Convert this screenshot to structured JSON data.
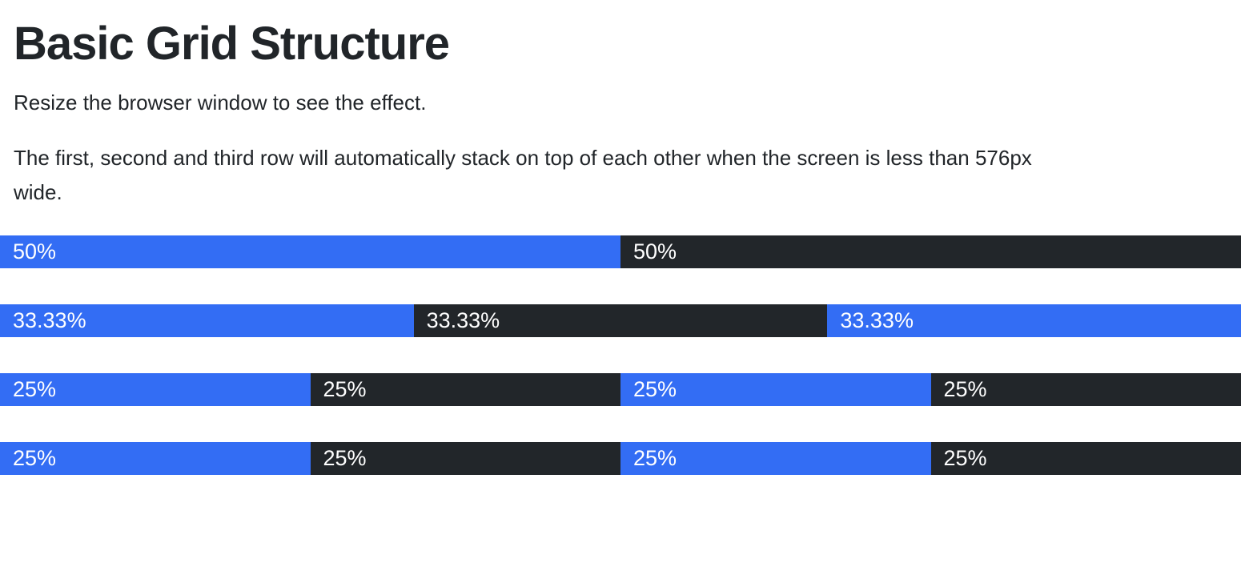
{
  "page": {
    "heading": "Basic Grid Structure",
    "paragraph1": "Resize the browser window to see the effect.",
    "paragraph2_line1": "The first, second and third row will automatically stack on top of each other when the screen is less than 576px",
    "paragraph2_line2": "wide."
  },
  "colors": {
    "blue": "#336DF4",
    "dark": "#22262A",
    "heading_text": "#212529",
    "body_text": "#212529",
    "cell_text": "#FFFFFF",
    "background": "#FFFFFF"
  },
  "grid": {
    "rows": [
      {
        "cells": [
          {
            "label": "50%",
            "width": "50%",
            "color": "blue"
          },
          {
            "label": "50%",
            "width": "50%",
            "color": "dark"
          }
        ]
      },
      {
        "cells": [
          {
            "label": "33.33%",
            "width": "33.33%",
            "color": "blue"
          },
          {
            "label": "33.33%",
            "width": "33.34%",
            "color": "dark"
          },
          {
            "label": "33.33%",
            "width": "33.33%",
            "color": "blue"
          }
        ]
      },
      {
        "cells": [
          {
            "label": "25%",
            "width": "25%",
            "color": "blue"
          },
          {
            "label": "25%",
            "width": "25%",
            "color": "dark"
          },
          {
            "label": "25%",
            "width": "25%",
            "color": "blue"
          },
          {
            "label": "25%",
            "width": "25%",
            "color": "dark"
          }
        ]
      },
      {
        "cells": [
          {
            "label": "25%",
            "width": "25%",
            "color": "blue"
          },
          {
            "label": "25%",
            "width": "25%",
            "color": "dark"
          },
          {
            "label": "25%",
            "width": "25%",
            "color": "blue"
          },
          {
            "label": "25%",
            "width": "25%",
            "color": "dark"
          }
        ]
      }
    ]
  }
}
